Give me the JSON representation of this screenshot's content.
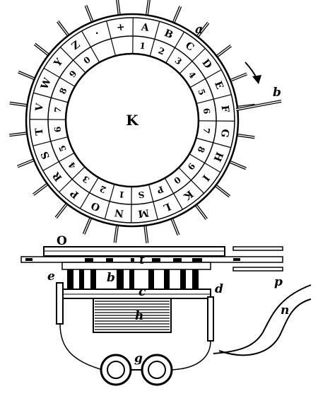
{
  "figure": {
    "center_label": "K",
    "outer_letters": [
      "+",
      "A",
      "B",
      "C",
      "D",
      "E",
      "F",
      "G",
      "H",
      "I",
      "K",
      "L",
      "M",
      "N",
      "O",
      "P",
      "R",
      "S",
      "T",
      "V",
      "W",
      "Y",
      "Z",
      "·"
    ],
    "inner_digits": [
      "",
      "1",
      "2",
      "3",
      "4",
      "5",
      "6",
      "7",
      "8",
      "9",
      "0",
      "P",
      "S",
      "1",
      "2",
      "3",
      "4",
      "5",
      "6",
      "7",
      "8",
      "9",
      "0",
      ""
    ],
    "labels": {
      "a": "a",
      "b_top": "b",
      "O": "O",
      "t": "t",
      "e": "e",
      "b_mid": "b",
      "c": "c",
      "d": "d",
      "p": "p",
      "h": "h",
      "n": "n",
      "g": "g"
    }
  }
}
